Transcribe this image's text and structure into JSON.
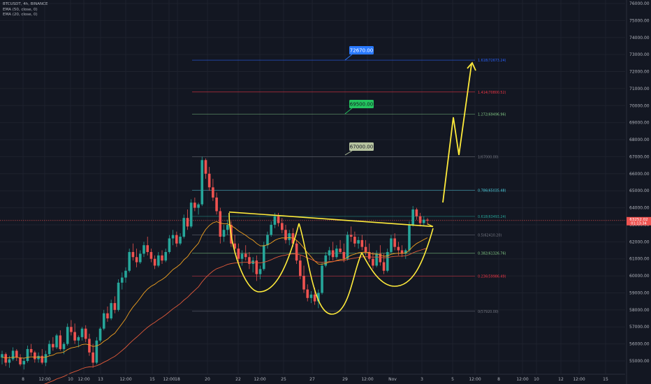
{
  "header": {
    "symbol_line": "BTCUSDT, 4h, BINANCE",
    "ema1_line": "EMA (50, close, 0)",
    "ema2_line": "EMA (20, close, 0)"
  },
  "colors": {
    "background": "#131722",
    "bull": "#26a69a",
    "bear": "#ef5350",
    "ema50": "#f0a020",
    "ema200": "#e05a3a",
    "pattern": "#ffeb3b",
    "price_line": "#ef5350"
  },
  "chart_data": {
    "type": "candlestick",
    "title": "",
    "xlabel": "",
    "ylabel": "",
    "ylim": [
      54400,
      76000
    ],
    "y_ticks": [
      55000,
      56000,
      57000,
      58000,
      59000,
      60000,
      61000,
      62000,
      63000,
      64000,
      65000,
      66000,
      67000,
      68000,
      69000,
      70000,
      71000,
      72000,
      73000,
      74000,
      75000,
      76000
    ],
    "y_tick_labels": [
      "55000.00",
      "56000.00",
      "57000.00",
      "58000.00",
      "59000.00",
      "60000.00",
      "61000.00",
      "62000.00",
      "63000.00",
      "64000.00",
      "65000.00",
      "66000.00",
      "67000.00",
      "68000.00",
      "69000.00",
      "70000.00",
      "71000.00",
      "72000.00",
      "73000.00",
      "74000.00",
      "75000.00",
      "76000.00"
    ],
    "x_ticks": [
      "8",
      "12:00",
      "10",
      "12:00",
      "13",
      "12:00",
      "15",
      "12:00",
      "18",
      "20",
      "22",
      "12:00",
      "25",
      "27",
      "29",
      "12:00",
      "Nov",
      "3",
      "5",
      "12:00",
      "8",
      "12:00",
      "10",
      "12",
      "12:00",
      "15"
    ],
    "current_price": {
      "value": 63252.02,
      "label": "63252.02",
      "sub_label": "01:13:34"
    },
    "candles_ohlc": [
      [
        55200,
        55600,
        54800,
        55400
      ],
      [
        55400,
        55500,
        54700,
        54900
      ],
      [
        54900,
        55300,
        54600,
        55100
      ],
      [
        55100,
        55800,
        55000,
        55600
      ],
      [
        55600,
        55700,
        55000,
        55200
      ],
      [
        55200,
        55400,
        54700,
        54800
      ],
      [
        54800,
        55200,
        54500,
        55000
      ],
      [
        55000,
        55900,
        54900,
        55700
      ],
      [
        55700,
        56000,
        55300,
        55500
      ],
      [
        55500,
        55600,
        54900,
        55100
      ],
      [
        55100,
        55500,
        54900,
        55300
      ],
      [
        55300,
        55700,
        54800,
        54900
      ],
      [
        54900,
        55600,
        54700,
        55400
      ],
      [
        55400,
        56200,
        55300,
        56000
      ],
      [
        56000,
        56400,
        55600,
        55800
      ],
      [
        55800,
        56600,
        55700,
        56500
      ],
      [
        56500,
        56800,
        55600,
        55700
      ],
      [
        55700,
        56100,
        55400,
        56000
      ],
      [
        56000,
        57200,
        55900,
        57000
      ],
      [
        57000,
        57400,
        56500,
        56700
      ],
      [
        56700,
        57200,
        56000,
        56200
      ],
      [
        56200,
        56500,
        55800,
        56400
      ],
      [
        56400,
        57000,
        56200,
        56900
      ],
      [
        56900,
        57100,
        56100,
        56300
      ],
      [
        56300,
        56600,
        55300,
        55500
      ],
      [
        55500,
        56000,
        54600,
        54900
      ],
      [
        54900,
        56400,
        54800,
        56200
      ],
      [
        56200,
        57000,
        56100,
        56900
      ],
      [
        56900,
        58000,
        56800,
        57800
      ],
      [
        57800,
        58200,
        57300,
        57500
      ],
      [
        57500,
        58600,
        57400,
        58400
      ],
      [
        58400,
        58800,
        57800,
        58000
      ],
      [
        58000,
        59800,
        57900,
        59600
      ],
      [
        59600,
        60200,
        59200,
        59900
      ],
      [
        59900,
        60500,
        59600,
        60300
      ],
      [
        60300,
        61600,
        60200,
        61400
      ],
      [
        61400,
        61900,
        60900,
        61100
      ],
      [
        61100,
        61600,
        60500,
        60800
      ],
      [
        60800,
        61500,
        60700,
        61300
      ],
      [
        61300,
        62000,
        61100,
        61800
      ],
      [
        61800,
        62300,
        61200,
        61400
      ],
      [
        61400,
        61600,
        60800,
        61000
      ],
      [
        61000,
        61200,
        60400,
        60600
      ],
      [
        60600,
        61400,
        60500,
        61200
      ],
      [
        61200,
        61500,
        60700,
        60900
      ],
      [
        60900,
        61600,
        60800,
        61400
      ],
      [
        61400,
        62400,
        61300,
        62200
      ],
      [
        62200,
        62700,
        61800,
        62400
      ],
      [
        62400,
        62600,
        61700,
        61900
      ],
      [
        61900,
        62500,
        61800,
        62300
      ],
      [
        62300,
        63600,
        62200,
        63400
      ],
      [
        63400,
        63900,
        62700,
        62900
      ],
      [
        62900,
        64500,
        62800,
        64300
      ],
      [
        64300,
        64600,
        63800,
        64000
      ],
      [
        64000,
        64300,
        63600,
        64200
      ],
      [
        64200,
        67000,
        64100,
        66800
      ],
      [
        66800,
        66900,
        65700,
        66000
      ],
      [
        66000,
        66400,
        65000,
        65200
      ],
      [
        65200,
        65700,
        64400,
        64600
      ],
      [
        64600,
        64900,
        63600,
        63800
      ],
      [
        63800,
        64000,
        61900,
        62300
      ],
      [
        62300,
        63000,
        62000,
        62700
      ],
      [
        62700,
        63300,
        62400,
        63000
      ],
      [
        63000,
        63200,
        61700,
        61900
      ],
      [
        61900,
        62400,
        61300,
        61600
      ],
      [
        61600,
        61900,
        60800,
        61000
      ],
      [
        61000,
        61500,
        60600,
        61300
      ],
      [
        61300,
        61800,
        60900,
        61100
      ],
      [
        61100,
        61400,
        60400,
        60700
      ],
      [
        60700,
        61100,
        60200,
        60900
      ],
      [
        60900,
        61200,
        59700,
        60100
      ],
      [
        60100,
        60600,
        59800,
        60400
      ],
      [
        60400,
        62000,
        60300,
        61800
      ],
      [
        61800,
        62600,
        61600,
        62400
      ],
      [
        62400,
        63200,
        62300,
        63000
      ],
      [
        63000,
        63700,
        62800,
        63500
      ],
      [
        63500,
        63700,
        62900,
        63100
      ],
      [
        63100,
        63400,
        62500,
        62700
      ],
      [
        62700,
        63000,
        61900,
        62100
      ],
      [
        62100,
        62700,
        61800,
        62500
      ],
      [
        62500,
        62800,
        61700,
        61900
      ],
      [
        61900,
        62100,
        60700,
        60900
      ],
      [
        60900,
        61200,
        59800,
        60000
      ],
      [
        60000,
        60600,
        59000,
        59200
      ],
      [
        59200,
        59500,
        58500,
        58700
      ],
      [
        58700,
        59100,
        58400,
        58900
      ],
      [
        58900,
        59300,
        58300,
        58500
      ],
      [
        58500,
        59200,
        58100,
        59000
      ],
      [
        59000,
        60800,
        58900,
        60600
      ],
      [
        60600,
        61400,
        60500,
        61200
      ],
      [
        61200,
        61700,
        60900,
        61500
      ],
      [
        61500,
        62000,
        60900,
        61100
      ],
      [
        61100,
        61800,
        61000,
        61600
      ],
      [
        61600,
        62100,
        61300,
        61400
      ],
      [
        61400,
        61900,
        60800,
        61000
      ],
      [
        61000,
        62600,
        60900,
        62400
      ],
      [
        62400,
        62900,
        62000,
        62300
      ],
      [
        62300,
        62600,
        61700,
        61900
      ],
      [
        61900,
        62300,
        61600,
        62100
      ],
      [
        62100,
        62400,
        61500,
        61700
      ],
      [
        61700,
        62100,
        61200,
        61400
      ],
      [
        61400,
        61900,
        60800,
        61000
      ],
      [
        61000,
        61400,
        60400,
        60600
      ],
      [
        60600,
        61500,
        60500,
        61300
      ],
      [
        61300,
        61800,
        60600,
        60800
      ],
      [
        60800,
        61300,
        60100,
        60300
      ],
      [
        60300,
        61600,
        60200,
        61400
      ],
      [
        61400,
        62400,
        61300,
        62200
      ],
      [
        62200,
        62500,
        61500,
        61700
      ],
      [
        61700,
        62000,
        61200,
        61500
      ],
      [
        61500,
        61800,
        61100,
        61300
      ],
      [
        61300,
        61600,
        61000,
        61500
      ],
      [
        61500,
        63200,
        61400,
        63000
      ],
      [
        63000,
        64100,
        62900,
        63900
      ],
      [
        63900,
        64000,
        63300,
        63500
      ],
      [
        63500,
        63700,
        62900,
        63100
      ],
      [
        63100,
        63500,
        62900,
        63300
      ],
      [
        63300,
        63400,
        63000,
        63252
      ]
    ]
  },
  "fib_levels": [
    {
      "label": "0(57920.00)",
      "price": 57920,
      "color": "#787b86"
    },
    {
      "label": "0.236(59986.49)",
      "price": 59986,
      "color": "#f23645"
    },
    {
      "label": "0.382(61326.76)",
      "price": 61327,
      "color": "#81c784"
    },
    {
      "label": "0.5(62410.20)",
      "price": 62410,
      "color": "#787b86"
    },
    {
      "label": "0.618(63493.24)",
      "price": 63493,
      "color": "#26a69a"
    },
    {
      "label": "0.786(65035.48)",
      "price": 65035,
      "color": "#4dd0e1"
    },
    {
      "label": "1(67000.00)",
      "price": 67000,
      "color": "#787b86"
    },
    {
      "label": "1.272(69496.96)",
      "price": 69497,
      "color": "#81c784"
    },
    {
      "label": "1.414(70800.52)",
      "price": 70800,
      "color": "#f23645"
    },
    {
      "label": "1.618(72673.24)",
      "price": 72673,
      "color": "#2962ff"
    }
  ],
  "targets": [
    {
      "label": "67000.00",
      "price": 67000,
      "bg": "#b7c4a0",
      "fg": "#131722"
    },
    {
      "label": "69500.00",
      "price": 69500,
      "bg": "#23c45e",
      "fg": "#131722"
    },
    {
      "label": "72670.00",
      "price": 72670,
      "bg": "#2979ff",
      "fg": "#ffffff"
    }
  ]
}
